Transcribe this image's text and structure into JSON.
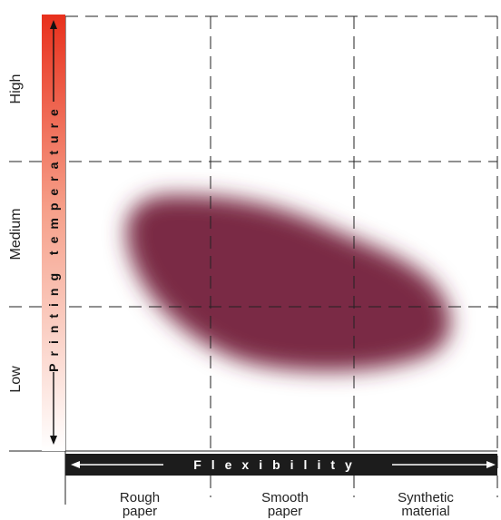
{
  "y_axis": {
    "title": "Printing temperature",
    "levels": [
      "Low",
      "Medium",
      "High"
    ],
    "gradient": {
      "top": "#e8301c",
      "bottom": "#ffffff"
    }
  },
  "x_axis": {
    "title": "Flexibility",
    "categories": [
      {
        "line1": "Rough",
        "line2": "paper"
      },
      {
        "line1": "Smooth",
        "line2": "paper"
      },
      {
        "line1": "Synthetic",
        "line2": "material"
      }
    ],
    "bar_color": "#1c1c1c"
  },
  "region": {
    "color": "#7a2a45",
    "label": ""
  },
  "grid": {
    "style": "dashed",
    "color": "#222222"
  }
}
